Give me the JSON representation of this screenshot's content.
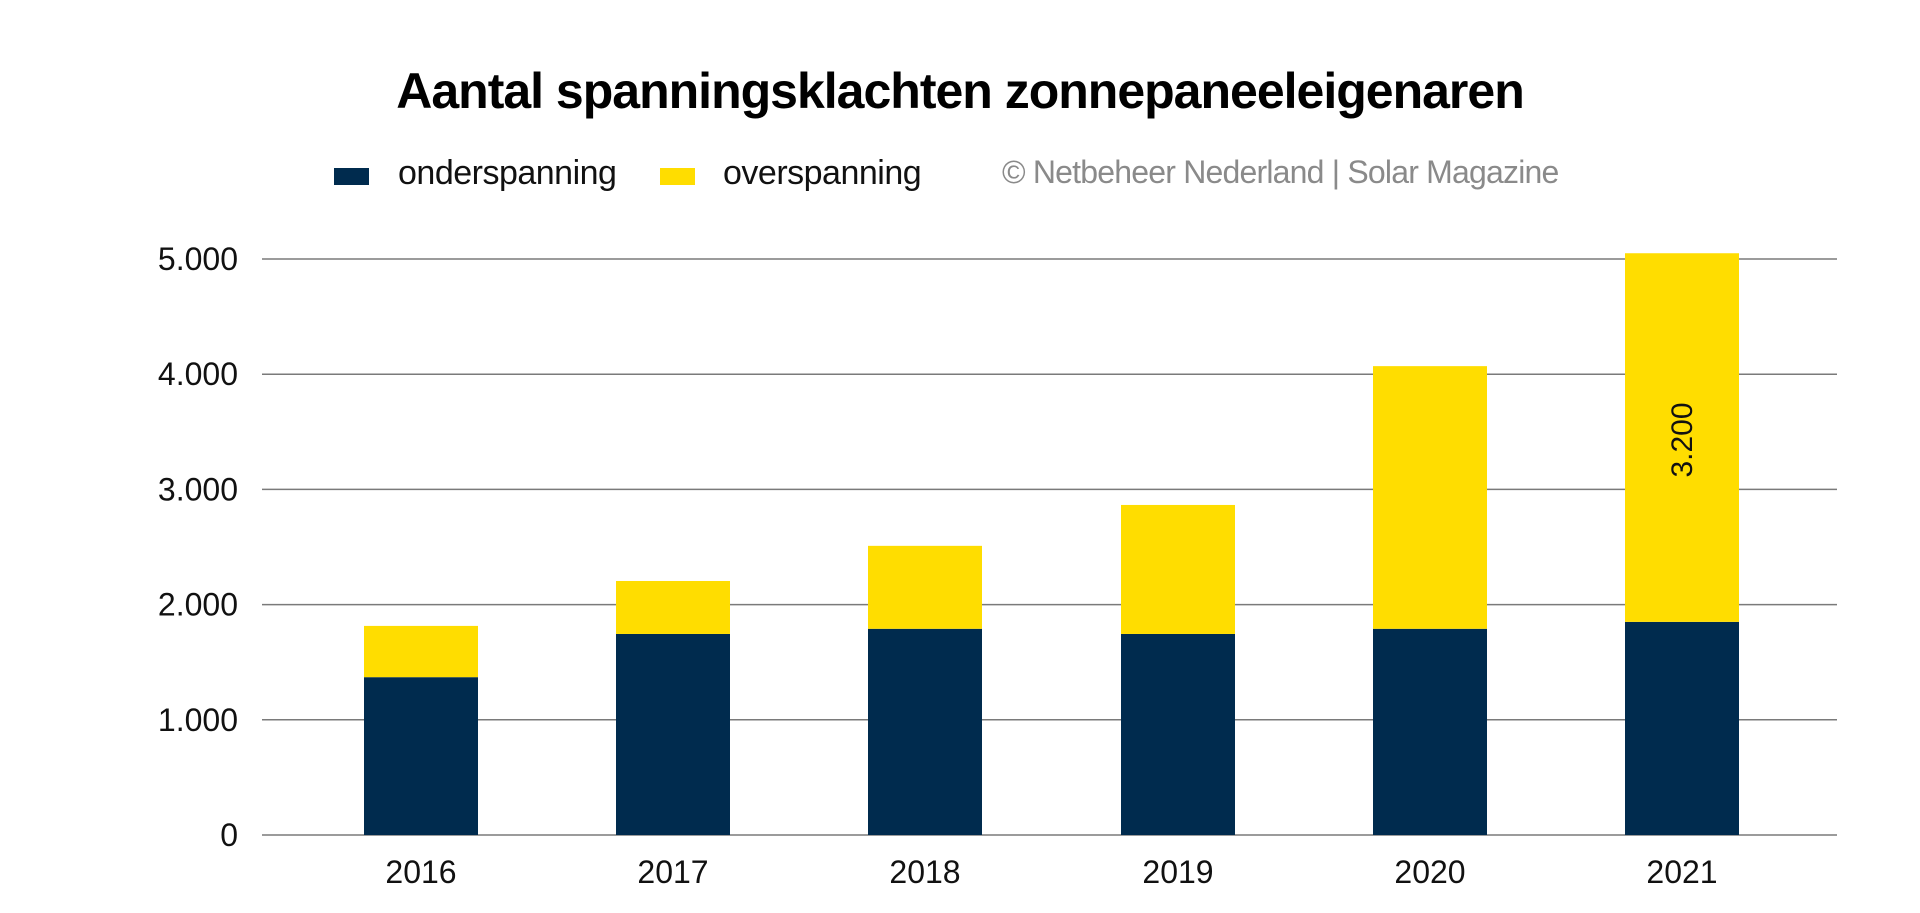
{
  "chart_data": {
    "type": "bar",
    "stacked": true,
    "title": "Aantal spanningsklachten zonnepaneeleigenaren",
    "source": "© Netbeheer Nederland | Solar Magazine",
    "categories": [
      "2016",
      "2017",
      "2018",
      "2019",
      "2020",
      "2021"
    ],
    "series": [
      {
        "name": "onderspanning",
        "color": "#002b4e",
        "values": [
          1370,
          1745,
          1790,
          1745,
          1790,
          1850
        ]
      },
      {
        "name": "overspanning",
        "color": "#ffdd00",
        "values": [
          445,
          460,
          720,
          1120,
          2280,
          3200
        ]
      }
    ],
    "data_labels": [
      {
        "category": "2021",
        "series": "overspanning",
        "text": "3.200"
      }
    ],
    "yticks": [
      "0",
      "1.000",
      "2.000",
      "3.000",
      "4.000",
      "5.000"
    ],
    "ytick_values": [
      0,
      1000,
      2000,
      3000,
      4000,
      5000
    ],
    "ylim": [
      0,
      5000
    ],
    "xlabel": "",
    "ylabel": "",
    "grid": true,
    "legend": "top-left"
  }
}
